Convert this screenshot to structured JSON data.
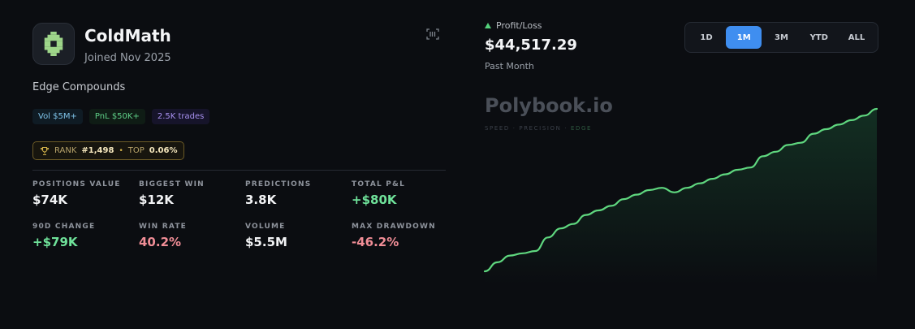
{
  "profile": {
    "name": "ColdMath",
    "joined": "Joined Nov 2025",
    "tagline": "Edge Compounds",
    "avatar_icon": "pixel-bot-icon",
    "accent_color": "#9ed68a"
  },
  "chips": {
    "vol": "Vol $5M+",
    "pnl": "PnL $50K+",
    "trades": "2.5K trades"
  },
  "rank": {
    "rank_label": "RANK",
    "rank_value": "#1,498",
    "separator": "•",
    "top_label": "TOP",
    "top_value": "0.06%"
  },
  "stats": [
    {
      "label": "POSITIONS VALUE",
      "value": "$74K",
      "tone": "neutral"
    },
    {
      "label": "BIGGEST WIN",
      "value": "$12K",
      "tone": "neutral"
    },
    {
      "label": "PREDICTIONS",
      "value": "3.8K",
      "tone": "neutral"
    },
    {
      "label": "TOTAL P&L",
      "value": "+$80K",
      "tone": "pos"
    },
    {
      "label": "90D CHANGE",
      "value": "+$79K",
      "tone": "pos"
    },
    {
      "label": "WIN RATE",
      "value": "40.2%",
      "tone": "neg"
    },
    {
      "label": "VOLUME",
      "value": "$5.5M",
      "tone": "neutral"
    },
    {
      "label": "MAX DRAWDOWN",
      "value": "-46.2%",
      "tone": "neg"
    }
  ],
  "pnl": {
    "label": "Profit/Loss",
    "value": "$44,517.29",
    "period": "Past Month"
  },
  "range_buttons": [
    {
      "label": "1D",
      "active": false
    },
    {
      "label": "1M",
      "active": true
    },
    {
      "label": "3M",
      "active": false
    },
    {
      "label": "YTD",
      "active": false
    },
    {
      "label": "ALL",
      "active": false
    }
  ],
  "watermark": {
    "brand": "Polybook.io",
    "sub_a": "SPEED · PRECISION ·",
    "sub_b": "EDGE"
  },
  "chart_data": {
    "type": "area",
    "series": [
      {
        "values": [
          0,
          4,
          7,
          8,
          9,
          15,
          19,
          21,
          25,
          27,
          29,
          32,
          34,
          36,
          37,
          35,
          37,
          39,
          41,
          43,
          45,
          46,
          51,
          53,
          56,
          57,
          61,
          63,
          65,
          67,
          69,
          72
        ]
      }
    ],
    "line_color": "#5fd77f",
    "grid": false,
    "axes_visible": false
  }
}
